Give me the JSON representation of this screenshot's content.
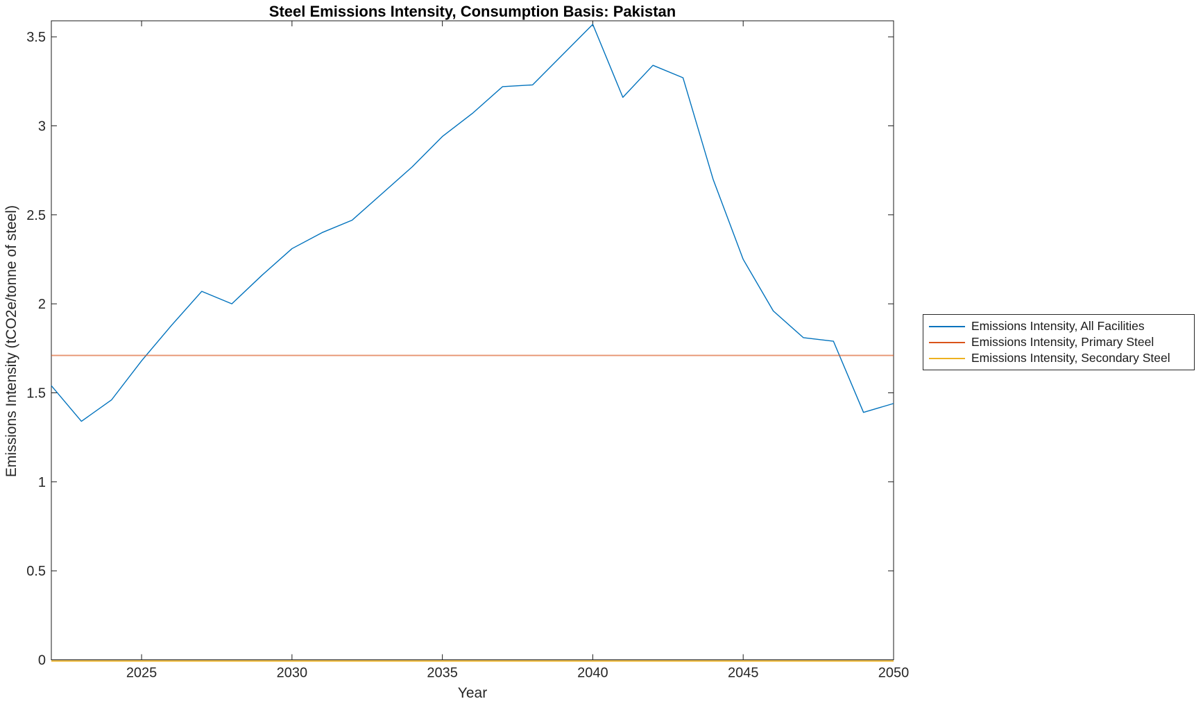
{
  "figure": {
    "background": "#ffffff",
    "axis_color": "#1a1a1a",
    "tick_label_color": "#262626"
  },
  "chart_data": {
    "type": "line",
    "title": "Steel Emissions Intensity, Consumption Basis: Pakistan",
    "xlabel": "Year",
    "ylabel": "Emissions Intensity (tCO2e/tonne of steel)",
    "xlim": [
      2022,
      2050
    ],
    "ylim": [
      0,
      3.59
    ],
    "xticks": [
      2025,
      2030,
      2035,
      2040,
      2045,
      2050
    ],
    "yticks": [
      0,
      0.5,
      1,
      1.5,
      2,
      2.5,
      3,
      3.5
    ],
    "grid": false,
    "box": true,
    "tick_direction": "in",
    "legend_position": "outside-right",
    "x": [
      2022,
      2023,
      2024,
      2025,
      2026,
      2027,
      2028,
      2029,
      2030,
      2031,
      2032,
      2033,
      2034,
      2035,
      2036,
      2037,
      2038,
      2039,
      2040,
      2041,
      2042,
      2043,
      2044,
      2045,
      2046,
      2047,
      2048,
      2049,
      2050
    ],
    "series": [
      {
        "name": "Emissions Intensity, All Facilities",
        "color": "#0072BD",
        "values": [
          1.54,
          1.34,
          1.46,
          1.68,
          1.88,
          2.07,
          2.0,
          2.16,
          2.31,
          2.4,
          2.47,
          2.62,
          2.77,
          2.94,
          3.07,
          3.22,
          3.23,
          3.4,
          3.57,
          3.16,
          3.34,
          3.27,
          2.7,
          2.25,
          1.96,
          1.81,
          1.79,
          1.39,
          1.44
        ]
      },
      {
        "name": "Emissions Intensity, Primary Steel",
        "color": "#D95319",
        "constant": 1.71
      },
      {
        "name": "Emissions Intensity, Secondary Steel",
        "color": "#EDB120",
        "constant": 0
      }
    ]
  }
}
